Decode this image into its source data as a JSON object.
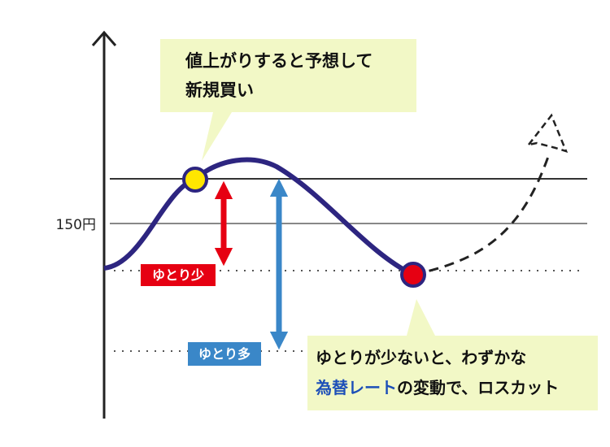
{
  "callout_top": {
    "lines": [
      "値上がりすると予想して",
      "新規買い"
    ]
  },
  "axis_label": "150円",
  "tags": [
    "ゆとり少",
    "ゆとり多"
  ],
  "callout_bottom": {
    "line1": "ゆとりが少ないと、わずかな",
    "highlight": "為替レート",
    "rest": "の変動で、ロスカット"
  }
}
